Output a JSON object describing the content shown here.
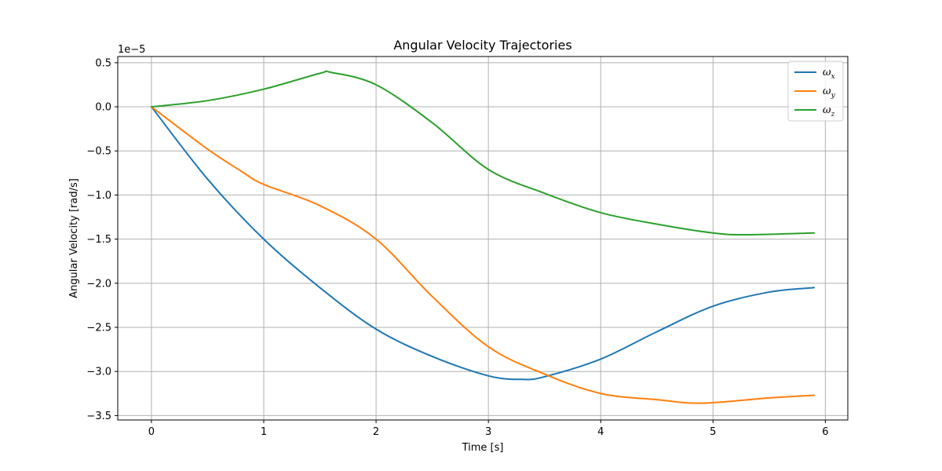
{
  "chart_data": {
    "type": "line",
    "title": "Angular Velocity Trajectories",
    "xlabel": "Time [s]",
    "ylabel": "Angular Velocity [rad/s]",
    "y_offset_label": "1e−5",
    "y_scale": 1e-05,
    "xlim": [
      -0.3,
      6.2
    ],
    "ylim": [
      -3.55,
      0.57
    ],
    "x_ticks": [
      0,
      1,
      2,
      3,
      4,
      5,
      6
    ],
    "x_tick_labels": [
      "0",
      "1",
      "2",
      "3",
      "4",
      "5",
      "6"
    ],
    "y_ticks": [
      0.5,
      0.0,
      -0.5,
      -1.0,
      -1.5,
      -2.0,
      -2.5,
      -3.0,
      -3.5
    ],
    "y_tick_labels": [
      "0.5",
      "0.0",
      "−0.5",
      "−1.0",
      "−1.5",
      "−2.0",
      "−2.5",
      "−3.0",
      "−3.5"
    ],
    "grid": true,
    "legend_position": "top-right",
    "series": [
      {
        "name": "ω",
        "subscript": "x",
        "color": "#1f77b4",
        "x": [
          0,
          0.5,
          1.0,
          1.5,
          2.0,
          2.5,
          3.0,
          3.3,
          3.5,
          4.0,
          4.5,
          5.0,
          5.5,
          5.9
        ],
        "y": [
          0,
          -0.82,
          -1.5,
          -2.05,
          -2.52,
          -2.83,
          -3.05,
          -3.09,
          -3.06,
          -2.86,
          -2.55,
          -2.26,
          -2.1,
          -2.05
        ]
      },
      {
        "name": "ω",
        "subscript": "y",
        "color": "#ff7f0e",
        "x": [
          0,
          0.5,
          0.8,
          1.0,
          1.5,
          2.0,
          2.5,
          3.0,
          3.5,
          4.0,
          4.5,
          4.9,
          5.5,
          5.9
        ],
        "y": [
          0,
          -0.48,
          -0.73,
          -0.88,
          -1.12,
          -1.5,
          -2.15,
          -2.72,
          -3.03,
          -3.25,
          -3.32,
          -3.36,
          -3.3,
          -3.27
        ]
      },
      {
        "name": "ω",
        "subscript": "z",
        "color": "#2ca02c",
        "x": [
          0,
          0.5,
          1.0,
          1.5,
          1.6,
          2.0,
          2.5,
          3.0,
          3.5,
          4.0,
          4.5,
          5.0,
          5.3,
          5.9
        ],
        "y": [
          0,
          0.07,
          0.2,
          0.38,
          0.39,
          0.25,
          -0.18,
          -0.71,
          -0.98,
          -1.2,
          -1.33,
          -1.43,
          -1.45,
          -1.43
        ]
      }
    ]
  }
}
